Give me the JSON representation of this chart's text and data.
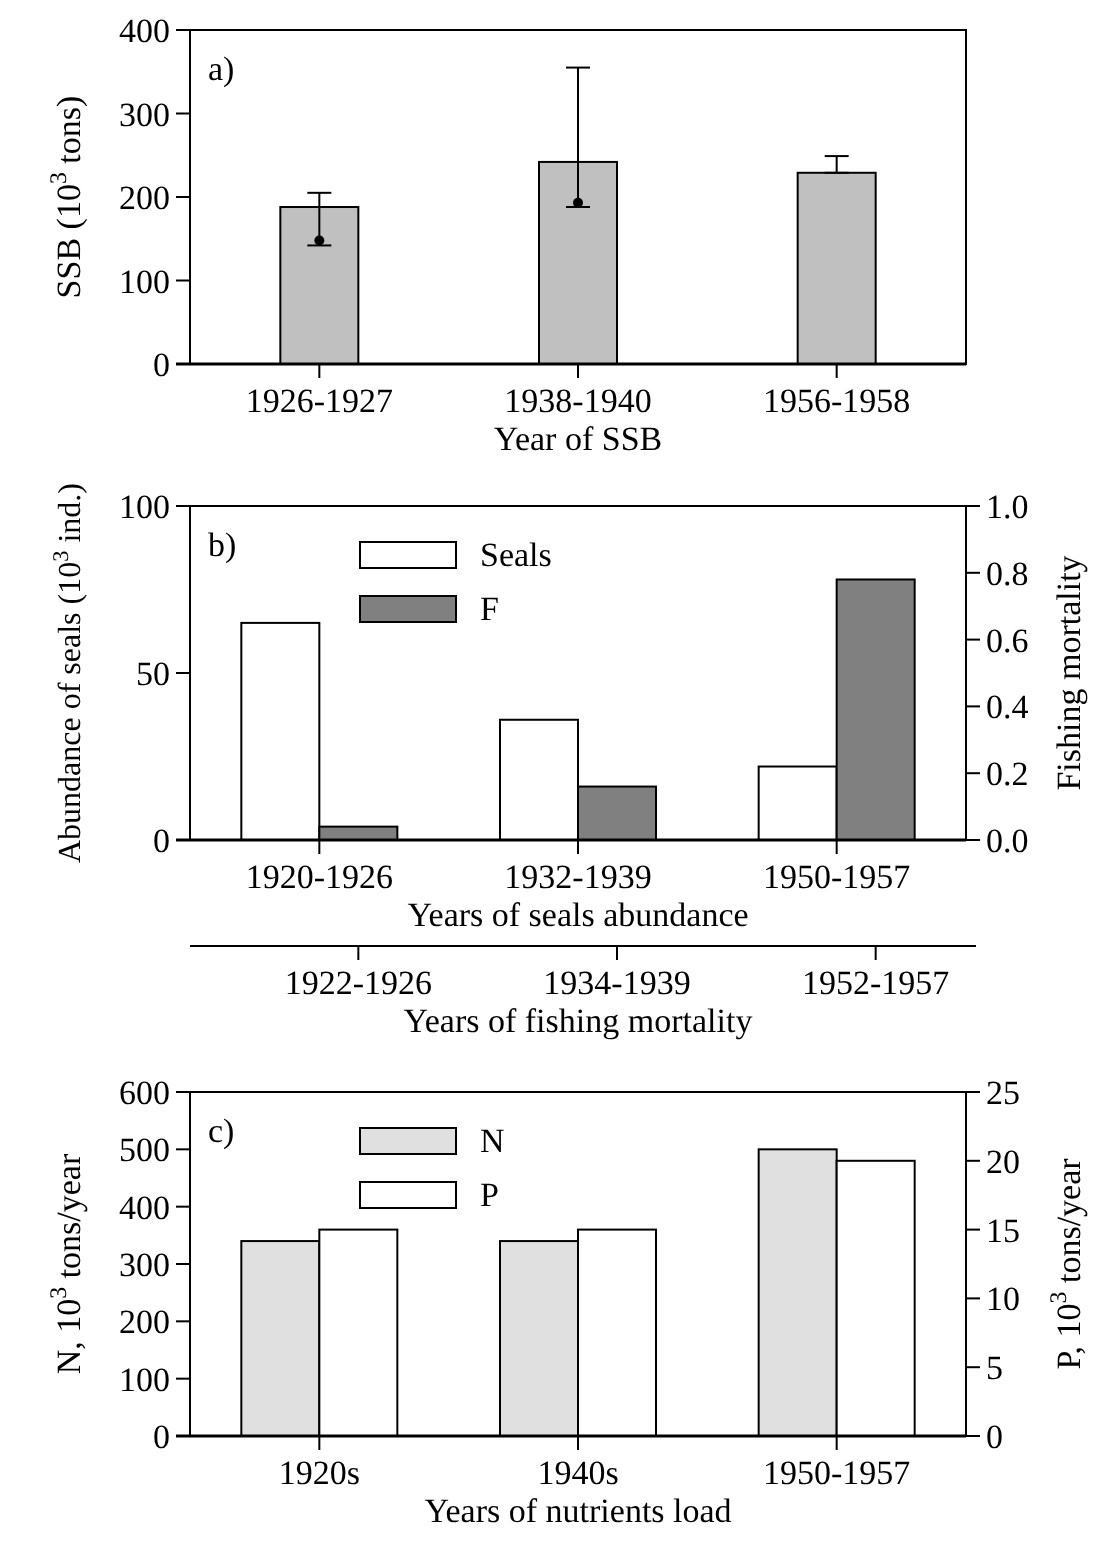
{
  "chart_data": [
    {
      "type": "bar",
      "categories": [
        "1926-1927",
        "1938-1940",
        "1956-1958"
      ],
      "xlabel": "Year of  SSB",
      "ylabel": "SSB (10$^{3}$ tons)",
      "ylim": [
        0,
        400
      ],
      "yticks": [
        0,
        100,
        200,
        300,
        400
      ],
      "annotations": [
        "a)"
      ],
      "marker": "circle",
      "series": [
        {
          "color": "#c0c0c0",
          "values": [
            188,
            242,
            229
          ],
          "errors": [
            [
              142,
              205
            ],
            [
              188,
              355
            ],
            [
              229,
              249
            ]
          ]
        },
        {
          "type": "scatter",
          "color": "#000000",
          "x": [
            "1926-1927",
            "1938-1940"
          ],
          "values": [
            148,
            193
          ]
        }
      ]
    },
    {
      "type": "bar",
      "categories": [
        "1920-1926",
        "1932-1939",
        "1950-1957"
      ],
      "xlabel": "Years of seals abundance",
      "x2label": "Years of fishing mortality",
      "ylabel": "Abundance of seals (10$^{3}$ ind.)",
      "y2label": "Fishing mortality",
      "ylim": [
        0,
        100
      ],
      "yticks": [
        0,
        50,
        100
      ],
      "y2lim": [
        0,
        1
      ],
      "y2ticks": [
        {
          "value": 0,
          "label": "0.0"
        },
        {
          "value": 0.2,
          "label": "0.2"
        },
        {
          "value": 0.4,
          "label": "0.4"
        },
        {
          "value": 0.6,
          "label": "0.6"
        },
        {
          "value": 0.8,
          "label": "0.8"
        },
        {
          "value": 1,
          "label": "1.0"
        }
      ],
      "annotations": [
        "b)",
        "1922-1926",
        "1934-1939",
        "1952-1957"
      ],
      "legend": "top left",
      "series": [
        {
          "name": "Seals",
          "color": "#ffffff",
          "values": [
            65,
            36,
            22
          ]
        },
        {
          "name": "F",
          "color": "#808080",
          "axis": "y2",
          "values": [
            0.04,
            0.16,
            0.78
          ]
        }
      ]
    },
    {
      "type": "bar",
      "categories": [
        "1920s",
        "1940s",
        "1950-1957"
      ],
      "xlabel": "Years of nutrients load",
      "ylabel": "N, 10$^{3}$ tons/year",
      "y2label": "P, 10$^{3}$ tons/year",
      "ylim": [
        0,
        600
      ],
      "yticks": [
        0,
        100,
        200,
        300,
        400,
        500,
        600
      ],
      "y2lim": [
        0,
        25
      ],
      "y2ticks": [
        0,
        5,
        10,
        15,
        20,
        25
      ],
      "annotations": [
        "c)"
      ],
      "legend": "top left",
      "series": [
        {
          "name": "N",
          "color": "#e0e0e0",
          "values": [
            340,
            340,
            500
          ]
        },
        {
          "name": "P",
          "color": "#ffffff",
          "axis": "y2",
          "values": [
            15,
            15,
            20
          ]
        }
      ]
    }
  ]
}
